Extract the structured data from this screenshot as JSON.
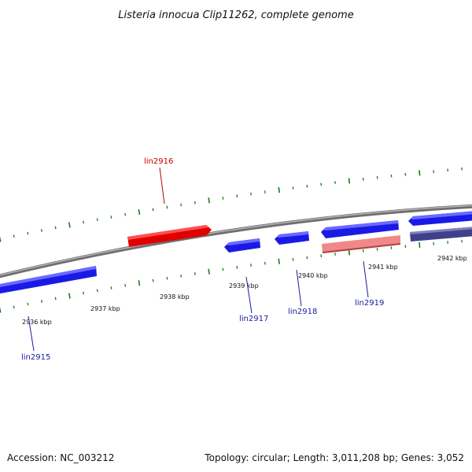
{
  "title": "Listeria innocua Clip11262, complete genome",
  "footer": {
    "accession": "Accession: NC_003212",
    "summary": "Topology: circular; Length: 3,011,208 bp; Genes: 3,052"
  },
  "colors": {
    "forward_gene": "#e00000",
    "forward_gene_light": "#f08888",
    "reverse_gene": "#1a1ae6",
    "reverse_gene_dark": "#40408a",
    "backbone": "#8a8a8a",
    "tick": "#1a7a1a",
    "label_forward": "#c00000",
    "label_reverse": "#1a1aa0"
  },
  "scale_labels": [
    "2936 kbp",
    "2937 kbp",
    "2938 kbp",
    "2939 kbp",
    "2940 kbp",
    "2941 kbp",
    "2942 kbp"
  ],
  "genes": [
    {
      "name": "lin2915",
      "strand": "reverse"
    },
    {
      "name": "lin2916",
      "strand": "forward"
    },
    {
      "name": "lin2917",
      "strand": "reverse"
    },
    {
      "name": "lin2918",
      "strand": "reverse"
    },
    {
      "name": "lin2919",
      "strand": "reverse"
    }
  ]
}
